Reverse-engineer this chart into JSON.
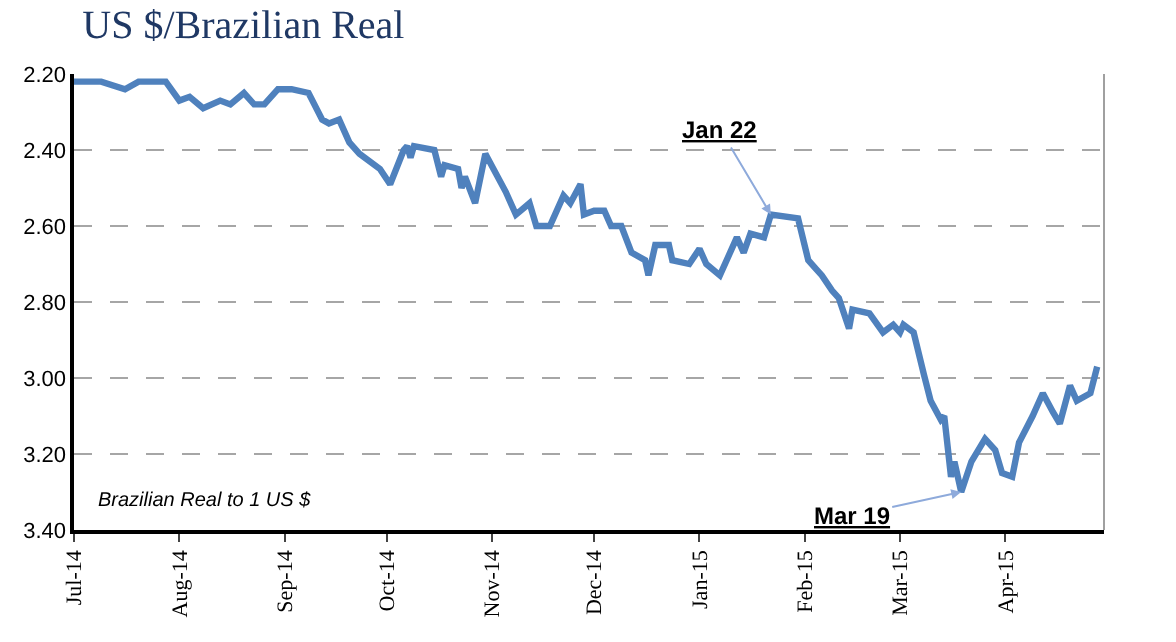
{
  "chart_data": {
    "type": "line",
    "title": "US $/Brazilian Real",
    "annotations": [
      {
        "text": "Jan 22",
        "x": "2015-01-22",
        "y": 2.57
      },
      {
        "text": "Mar 19",
        "x": "2015-03-19",
        "y": 3.3
      },
      "Brazilian Real to 1 US $"
    ],
    "x": [
      "2014-07-01",
      "2014-07-09",
      "2014-07-16",
      "2014-07-20",
      "2014-07-28",
      "2014-08-01",
      "2014-08-04",
      "2014-08-08",
      "2014-08-13",
      "2014-08-16",
      "2014-08-20",
      "2014-08-23",
      "2014-08-26",
      "2014-08-30",
      "2014-09-03",
      "2014-09-08",
      "2014-09-12",
      "2014-09-14",
      "2014-09-17",
      "2014-09-20",
      "2014-09-23",
      "2014-09-29",
      "2014-10-02",
      "2014-10-06",
      "2014-10-07",
      "2014-10-08",
      "2014-10-09",
      "2014-10-15",
      "2014-10-17",
      "2014-10-18",
      "2014-10-22",
      "2014-10-23",
      "2014-10-24",
      "2014-10-27",
      "2014-10-30",
      "2014-11-05",
      "2014-11-08",
      "2014-11-12",
      "2014-11-14",
      "2014-11-18",
      "2014-11-22",
      "2014-11-24",
      "2014-11-27",
      "2014-11-28",
      "2014-12-01",
      "2014-12-04",
      "2014-12-06",
      "2014-12-09",
      "2014-12-12",
      "2014-12-16",
      "2014-12-17",
      "2014-12-19",
      "2014-12-23",
      "2014-12-24",
      "2014-12-29",
      "2015-01-01",
      "2015-01-03",
      "2015-01-07",
      "2015-01-12",
      "2015-01-14",
      "2015-01-16",
      "2015-01-20",
      "2015-01-22",
      "2015-01-30",
      "2015-02-02",
      "2015-02-04",
      "2015-02-06",
      "2015-02-09",
      "2015-02-11",
      "2015-02-14",
      "2015-02-15",
      "2015-02-20",
      "2015-02-24",
      "2015-02-27",
      "2015-03-01",
      "2015-03-02",
      "2015-03-05",
      "2015-03-08",
      "2015-03-10",
      "2015-03-13",
      "2015-03-14",
      "2015-03-16",
      "2015-03-17",
      "2015-03-19",
      "2015-03-22",
      "2015-03-26",
      "2015-03-29",
      "2015-03-31",
      "2015-04-03",
      "2015-04-05",
      "2015-04-09",
      "2015-04-12",
      "2015-04-15",
      "2015-04-17",
      "2015-04-20",
      "2015-04-22",
      "2015-04-26",
      "2015-04-28"
    ],
    "series": [
      {
        "color": "#4f81bd",
        "values": [
          2.22,
          2.22,
          2.24,
          2.22,
          2.22,
          2.27,
          2.26,
          2.29,
          2.27,
          2.28,
          2.25,
          2.28,
          2.28,
          2.24,
          2.24,
          2.25,
          2.32,
          2.33,
          2.32,
          2.38,
          2.41,
          2.45,
          2.49,
          2.4,
          2.39,
          2.42,
          2.39,
          2.4,
          2.47,
          2.44,
          2.45,
          2.5,
          2.47,
          2.54,
          2.41,
          2.51,
          2.57,
          2.54,
          2.6,
          2.6,
          2.52,
          2.54,
          2.49,
          2.57,
          2.56,
          2.56,
          2.6,
          2.6,
          2.67,
          2.69,
          2.73,
          2.65,
          2.65,
          2.69,
          2.7,
          2.66,
          2.7,
          2.73,
          2.63,
          2.67,
          2.62,
          2.63,
          2.57,
          2.58,
          2.69,
          2.71,
          2.73,
          2.77,
          2.79,
          2.87,
          2.82,
          2.83,
          2.88,
          2.86,
          2.88,
          2.86,
          2.88,
          2.99,
          3.06,
          3.11,
          3.1,
          3.26,
          3.22,
          3.3,
          3.22,
          3.16,
          3.19,
          3.25,
          3.26,
          3.17,
          3.1,
          3.04,
          3.09,
          3.12,
          3.02,
          3.06,
          3.04,
          2.97
        ]
      }
    ],
    "xlim": [
      "2014-07-01",
      "2015-04-30"
    ],
    "xticks": [
      {
        "value": "2014-07-01",
        "label": "Jul-14"
      },
      {
        "value": "2014-08-01",
        "label": "Aug-14"
      },
      {
        "value": "2014-09-01",
        "label": "Sep-14"
      },
      {
        "value": "2014-10-01",
        "label": "Oct-14"
      },
      {
        "value": "2014-11-01",
        "label": "Nov-14"
      },
      {
        "value": "2014-12-01",
        "label": "Dec-14"
      },
      {
        "value": "2015-01-01",
        "label": "Jan-15"
      },
      {
        "value": "2015-02-01",
        "label": "Feb-15"
      },
      {
        "value": "2015-03-01",
        "label": "Mar-15"
      },
      {
        "value": "2015-04-01",
        "label": "Apr-15"
      }
    ],
    "ylim": [
      3.4,
      2.2
    ],
    "yticks": [
      {
        "value": 2.2,
        "label": "2.20"
      },
      {
        "value": 2.4,
        "label": "2.40"
      },
      {
        "value": 2.6,
        "label": "2.60"
      },
      {
        "value": 2.8,
        "label": "2.80"
      },
      {
        "value": 3.0,
        "label": "3.00"
      },
      {
        "value": 3.2,
        "label": "3.20"
      },
      {
        "value": 3.4,
        "label": "3.40"
      }
    ],
    "grid": "y",
    "legend": false,
    "marker": "none",
    "line_style": "solid"
  }
}
